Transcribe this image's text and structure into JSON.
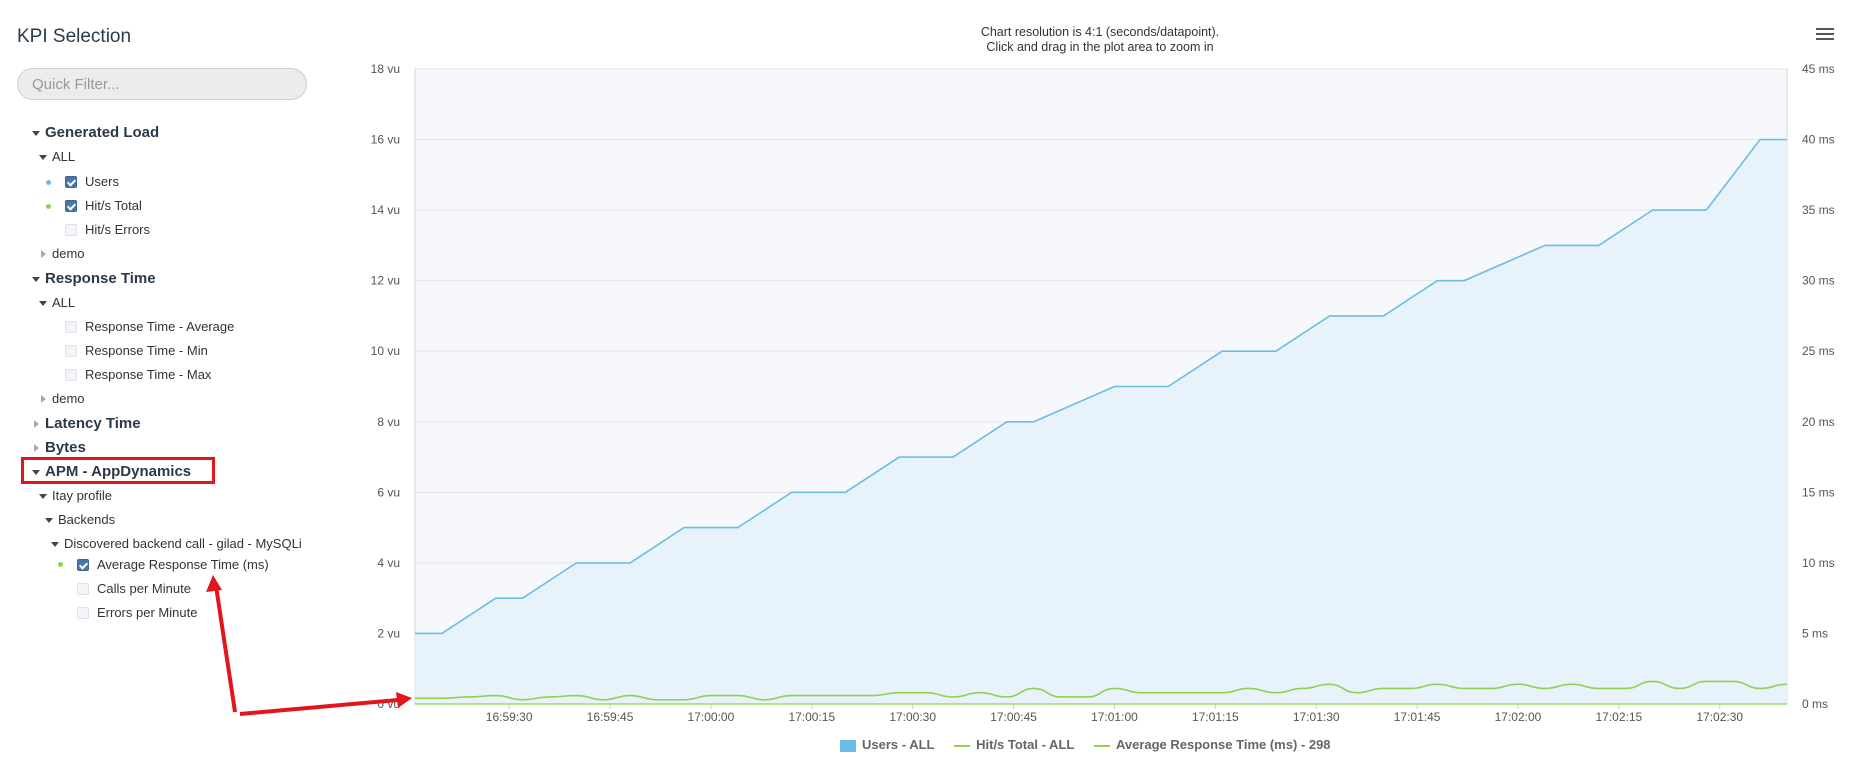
{
  "panel": {
    "title": "KPI Selection",
    "filter_placeholder": "Quick Filter...",
    "groups": {
      "generated_load": "Generated Load",
      "gl_all": "ALL",
      "users": "Users",
      "hits_total": "Hit/s Total",
      "hits_errors": "Hit/s Errors",
      "gl_demo": "demo",
      "response_time": "Response Time",
      "rt_all": "ALL",
      "rt_avg": "Response Time - Average",
      "rt_min": "Response Time - Min",
      "rt_max": "Response Time - Max",
      "rt_demo": "demo",
      "latency_time": "Latency Time",
      "bytes": "Bytes",
      "apm": "APM - AppDynamics",
      "itay_profile": "Itay profile",
      "backends": "Backends",
      "discovered": "Discovered backend call - gilad - MySQLi",
      "avg_resp": "Average Response Time (ms)",
      "calls_per_min": "Calls per Minute",
      "errors_per_min": "Errors per Minute"
    }
  },
  "chart": {
    "subtitle_line1": "Chart resolution is 4:1 (seconds/datapoint).",
    "subtitle_line2": "Click and drag in the plot area to zoom in"
  },
  "colors": {
    "users": "#6bbde6",
    "users_fill": "#e7f2fa",
    "hits": "#8fd14f",
    "avg_resp": "#8fd14f",
    "annotation": "#e3141b",
    "plot_bg": "#f6f8fb"
  },
  "icons": {
    "menu": "hamburger-menu-icon"
  },
  "chart_data": {
    "type": "area",
    "subtitle": "Chart resolution is 4:1 (seconds/datapoint). Click and drag in the plot area to zoom in",
    "x_tick_labels": [
      "16:59:30",
      "16:59:45",
      "17:00:00",
      "17:00:15",
      "17:00:30",
      "17:00:45",
      "17:01:00",
      "17:01:15",
      "17:01:30",
      "17:01:45",
      "17:02:00",
      "17:02:15",
      "17:02:30"
    ],
    "x_ticks_seconds": [
      30,
      45,
      60,
      75,
      90,
      105,
      120,
      135,
      150,
      165,
      180,
      195,
      210
    ],
    "x_range_seconds": [
      16,
      220
    ],
    "y_left": {
      "unit": "vu",
      "ylim": [
        0,
        18
      ],
      "ticks": [
        0,
        2,
        4,
        6,
        8,
        10,
        12,
        14,
        16,
        18
      ],
      "tick_labels": [
        "0 vu",
        "2 vu",
        "4 vu",
        "6 vu",
        "8 vu",
        "10 vu",
        "12 vu",
        "14 vu",
        "16 vu",
        "18 vu"
      ]
    },
    "y_right": {
      "unit": "ms",
      "ylim": [
        0,
        45
      ],
      "ticks": [
        0,
        5,
        10,
        15,
        20,
        25,
        30,
        35,
        40,
        45
      ],
      "tick_labels": [
        "0 ms",
        "5 ms",
        "10 ms",
        "15 ms",
        "20 ms",
        "25 ms",
        "30 ms",
        "35 ms",
        "40 ms",
        "45 ms"
      ]
    },
    "grid": true,
    "legend_position": "bottom-center",
    "series": [
      {
        "name": "Users - ALL",
        "type": "area",
        "axis": "left",
        "x": [
          16,
          20,
          28,
          32,
          40,
          48,
          56,
          64,
          72,
          80,
          88,
          96,
          104,
          108,
          120,
          128,
          136,
          144,
          152,
          160,
          168,
          172,
          184,
          192,
          200,
          208,
          216,
          220
        ],
        "y": [
          2,
          2,
          3,
          3,
          4,
          4,
          5,
          5,
          6,
          6,
          7,
          7,
          8,
          8,
          9,
          9,
          10,
          10,
          11,
          11,
          12,
          12,
          13,
          13,
          14,
          14,
          16,
          16
        ]
      },
      {
        "name": "Hit/s Total - ALL",
        "type": "line",
        "axis": "left",
        "x": [
          16,
          220
        ],
        "y": [
          0,
          0
        ]
      },
      {
        "name": "Average Response Time (ms) - 298",
        "type": "line",
        "axis": "right",
        "x": [
          16,
          20,
          24,
          28,
          32,
          36,
          40,
          44,
          48,
          52,
          56,
          60,
          64,
          68,
          72,
          76,
          80,
          84,
          88,
          92,
          96,
          100,
          104,
          108,
          112,
          116,
          120,
          124,
          128,
          132,
          136,
          140,
          144,
          148,
          152,
          156,
          160,
          164,
          168,
          172,
          176,
          180,
          184,
          188,
          192,
          196,
          200,
          204,
          208,
          212,
          216,
          220
        ],
        "y": [
          0.4,
          0.4,
          0.5,
          0.6,
          0.3,
          0.5,
          0.6,
          0.3,
          0.6,
          0.3,
          0.3,
          0.6,
          0.6,
          0.3,
          0.6,
          0.6,
          0.6,
          0.6,
          0.8,
          0.8,
          0.5,
          0.8,
          0.5,
          1.1,
          0.5,
          0.5,
          1.1,
          0.8,
          0.8,
          0.8,
          0.8,
          1.1,
          0.8,
          1.1,
          1.4,
          0.8,
          1.1,
          1.1,
          1.4,
          1.1,
          1.1,
          1.4,
          1.1,
          1.4,
          1.1,
          1.1,
          1.6,
          1.1,
          1.6,
          1.6,
          1.1,
          1.4
        ]
      }
    ],
    "legend": [
      "Users - ALL",
      "Hit/s Total - ALL",
      "Average Response Time (ms) - 298"
    ]
  }
}
